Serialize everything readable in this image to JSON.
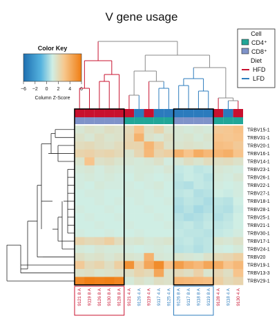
{
  "chart_data": {
    "type": "heatmap",
    "title": "V gene usage",
    "color_key": {
      "title": "Color Key",
      "xlabel": "Column Z-Score",
      "ticks": [
        "−6",
        "−2",
        "0",
        "2",
        "4",
        "6"
      ],
      "low_color": "#1e6fb0",
      "mid_color": "#cfeee4",
      "high_color": "#f07d12"
    },
    "legend": {
      "cell_title": "Cell",
      "cell_items": [
        {
          "label": "CD4⁺",
          "color": "#22a698"
        },
        {
          "label": "CD8⁺",
          "color": "#7f93c9"
        }
      ],
      "diet_title": "Diet",
      "diet_items": [
        {
          "label": "HFD",
          "color": "#c8102e"
        },
        {
          "label": "LFD",
          "color": "#2b7bbd"
        }
      ],
      "placement": "top-right"
    },
    "rows": [
      "TRBV15-1",
      "TRBV31-1",
      "TRBV20-1",
      "TRBV16-1",
      "TRBV14-1",
      "TRBV23-1",
      "TRBV26-1",
      "TRBV22-1",
      "TRBV27-1",
      "TRBV18-1",
      "TRBV28-1",
      "TRBV25-1",
      "TRBV21-1",
      "TRBV30-1",
      "TRBV17-1",
      "TRBV24-1",
      "TRBV20",
      "TRBV19-1",
      "TRBV13-3",
      "TRBV29-1"
    ],
    "columns": [
      "9121 8 A",
      "9119 8 A",
      "9126 8 A",
      "9130 8 A",
      "9128 8 A",
      "9121 4 A",
      "9126 4 A",
      "9119 4 A",
      "9117 4 A",
      "9125 4 A",
      "9126 8 A",
      "9117 8 A",
      "9118 8 A",
      "9119 8 A",
      "9128 4 A",
      "9118 4 A",
      "9130 4 A"
    ],
    "column_cell": [
      "CD8",
      "CD8",
      "CD8",
      "CD8",
      "CD8",
      "CD4",
      "CD4",
      "CD4",
      "CD4",
      "CD4",
      "CD8",
      "CD8",
      "CD8",
      "CD8",
      "CD4",
      "CD4",
      "CD4"
    ],
    "column_diet": [
      "HFD",
      "HFD",
      "HFD",
      "HFD",
      "HFD",
      "HFD",
      "LFD",
      "HFD",
      "LFD",
      "LFD",
      "LFD",
      "LFD",
      "LFD",
      "LFD",
      "HFD",
      "LFD",
      "HFD"
    ],
    "values": [
      [
        0.3,
        0.5,
        0.4,
        0.6,
        0.5,
        0.8,
        1.6,
        0.6,
        1.0,
        0.4,
        0.3,
        0.2,
        0.3,
        0.2,
        1.4,
        1.5,
        1.7
      ],
      [
        0.5,
        0.3,
        0.6,
        0.4,
        0.5,
        0.9,
        2.2,
        0.5,
        0.3,
        0.6,
        0.3,
        0.4,
        0.2,
        0.4,
        1.6,
        1.5,
        1.6
      ],
      [
        0.7,
        0.8,
        0.6,
        0.5,
        0.7,
        1.0,
        1.0,
        2.1,
        1.2,
        0.5,
        0.4,
        0.5,
        0.4,
        0.3,
        1.8,
        1.7,
        1.4
      ],
      [
        1.0,
        1.1,
        0.9,
        1.0,
        0.8,
        0.4,
        0.9,
        2.0,
        1.0,
        1.2,
        2.2,
        1.6,
        2.4,
        2.0,
        2.1,
        2.3,
        1.6
      ],
      [
        0.4,
        1.6,
        0.5,
        0.6,
        0.4,
        0.3,
        0.2,
        0.3,
        0.5,
        0.1,
        0.3,
        0.6,
        0.4,
        0.7,
        0.6,
        0.7,
        0.5
      ],
      [
        0.2,
        0.3,
        0.1,
        0.3,
        0.2,
        0.1,
        0.2,
        0.2,
        0.1,
        0.3,
        -0.2,
        -0.1,
        -0.3,
        -0.2,
        0.3,
        0.2,
        0.1
      ],
      [
        0.1,
        0.2,
        0.1,
        0.2,
        0.1,
        0.0,
        0.2,
        0.1,
        0.0,
        0.1,
        -0.3,
        -0.1,
        -0.2,
        -0.4,
        0.2,
        0.1,
        0.3
      ],
      [
        0.1,
        0.0,
        0.2,
        0.1,
        0.1,
        0.1,
        0.0,
        0.1,
        0.2,
        0.0,
        -0.4,
        -0.5,
        -0.2,
        -0.3,
        0.1,
        0.0,
        0.1
      ],
      [
        0.0,
        0.1,
        0.1,
        0.0,
        0.0,
        0.1,
        0.1,
        0.0,
        0.1,
        0.0,
        -0.3,
        -0.2,
        -0.5,
        -0.4,
        0.0,
        -0.1,
        0.1
      ],
      [
        0.0,
        0.0,
        0.1,
        0.0,
        0.1,
        0.0,
        0.1,
        0.0,
        0.0,
        0.1,
        -0.5,
        -0.3,
        -0.4,
        -0.6,
        -0.3,
        -0.4,
        0.0
      ],
      [
        0.1,
        0.0,
        0.0,
        0.1,
        0.0,
        0.0,
        0.0,
        0.1,
        0.0,
        0.0,
        -0.6,
        -0.4,
        -0.7,
        -0.5,
        -0.4,
        -0.5,
        -0.1
      ],
      [
        0.0,
        0.1,
        0.0,
        0.0,
        0.1,
        0.0,
        0.0,
        0.0,
        0.1,
        0.0,
        -0.4,
        -0.6,
        -0.5,
        -0.3,
        -0.5,
        -0.3,
        0.0
      ],
      [
        0.0,
        0.0,
        0.1,
        0.0,
        0.0,
        0.1,
        0.0,
        0.0,
        0.0,
        0.1,
        -0.3,
        -0.2,
        -0.4,
        -0.2,
        -0.3,
        -0.2,
        0.0
      ],
      [
        0.1,
        0.0,
        0.0,
        0.1,
        0.0,
        0.0,
        0.1,
        0.0,
        0.0,
        0.0,
        -0.2,
        -0.3,
        -0.3,
        -0.4,
        -0.2,
        -0.1,
        0.1
      ],
      [
        1.0,
        0.8,
        0.9,
        1.2,
        0.7,
        0.3,
        0.4,
        0.2,
        0.3,
        0.4,
        -0.3,
        -0.2,
        -0.4,
        -0.3,
        0.4,
        0.3,
        0.5
      ],
      [
        0.2,
        0.1,
        0.3,
        0.2,
        0.2,
        0.1,
        0.0,
        0.1,
        0.2,
        0.1,
        -0.4,
        -0.3,
        -0.5,
        -0.3,
        0.1,
        0.0,
        0.2
      ],
      [
        0.6,
        0.4,
        0.5,
        0.3,
        0.5,
        0.4,
        0.3,
        2.2,
        0.3,
        0.2,
        0.4,
        0.3,
        0.2,
        0.5,
        0.8,
        0.9,
        1.2
      ],
      [
        1.4,
        0.8,
        1.0,
        0.6,
        1.2,
        3.3,
        1.2,
        2.6,
        3.5,
        1.6,
        2.9,
        2.3,
        2.0,
        2.6,
        2.4,
        1.6,
        2.0
      ],
      [
        0.5,
        0.6,
        0.4,
        0.5,
        0.6,
        0.6,
        1.0,
        0.8,
        2.6,
        0.5,
        0.8,
        0.6,
        1.1,
        0.4,
        0.9,
        0.6,
        1.6
      ],
      [
        3.6,
        3.9,
        3.8,
        3.9,
        3.7,
        0.2,
        0.5,
        0.3,
        0.6,
        0.5,
        2.1,
        2.0,
        1.9,
        1.8,
        1.2,
        0.8,
        1.0
      ]
    ],
    "highlight_groups": [
      [
        0,
        4
      ],
      [
        10,
        13
      ]
    ],
    "highlight_columns": [
      0,
      1,
      2,
      3,
      4,
      10,
      11,
      12,
      13
    ]
  }
}
